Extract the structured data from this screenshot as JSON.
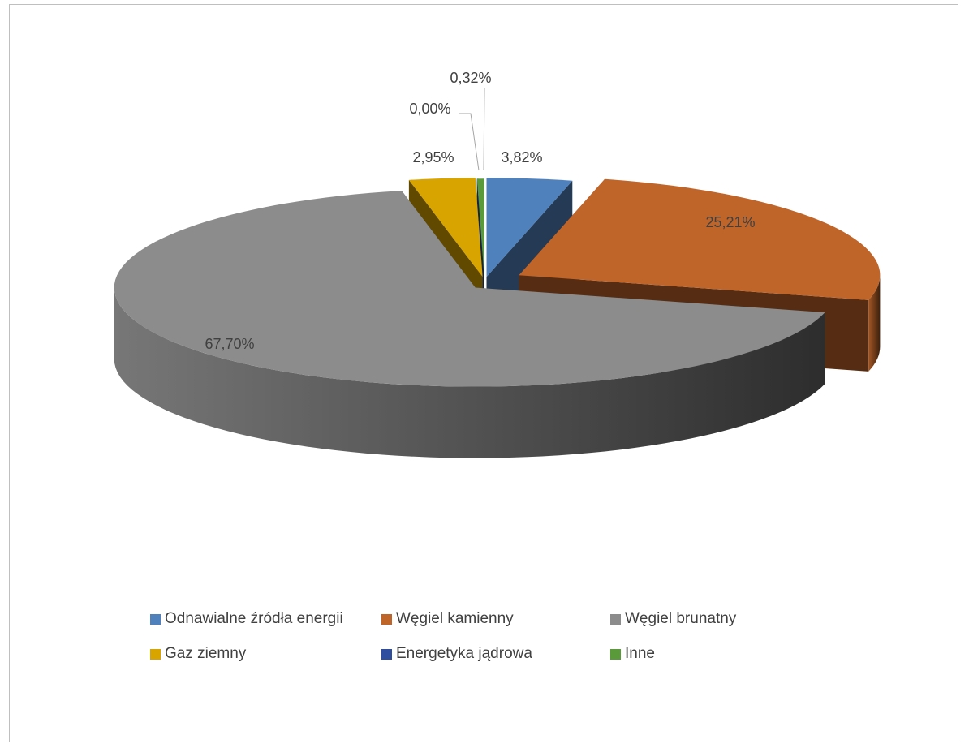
{
  "chart_data": {
    "type": "pie",
    "style": "3d-exploded",
    "categories": [
      "Odnawialne źródła energii",
      "Węgiel kamienny",
      "Węgiel brunatny",
      "Gaz ziemny",
      "Energetyka jądrowa",
      "Inne"
    ],
    "values": [
      3.82,
      25.21,
      67.7,
      2.95,
      0.0,
      0.32
    ],
    "data_labels": [
      "3,82%",
      "25,21%",
      "67,70%",
      "2,95%",
      "0,00%",
      "0,32%"
    ],
    "colors": [
      "#4f81bd",
      "#c0652a",
      "#8c8c8c",
      "#d8a400",
      "#2e4d9e",
      "#5b9a3a"
    ],
    "legend_position": "bottom",
    "title": ""
  }
}
